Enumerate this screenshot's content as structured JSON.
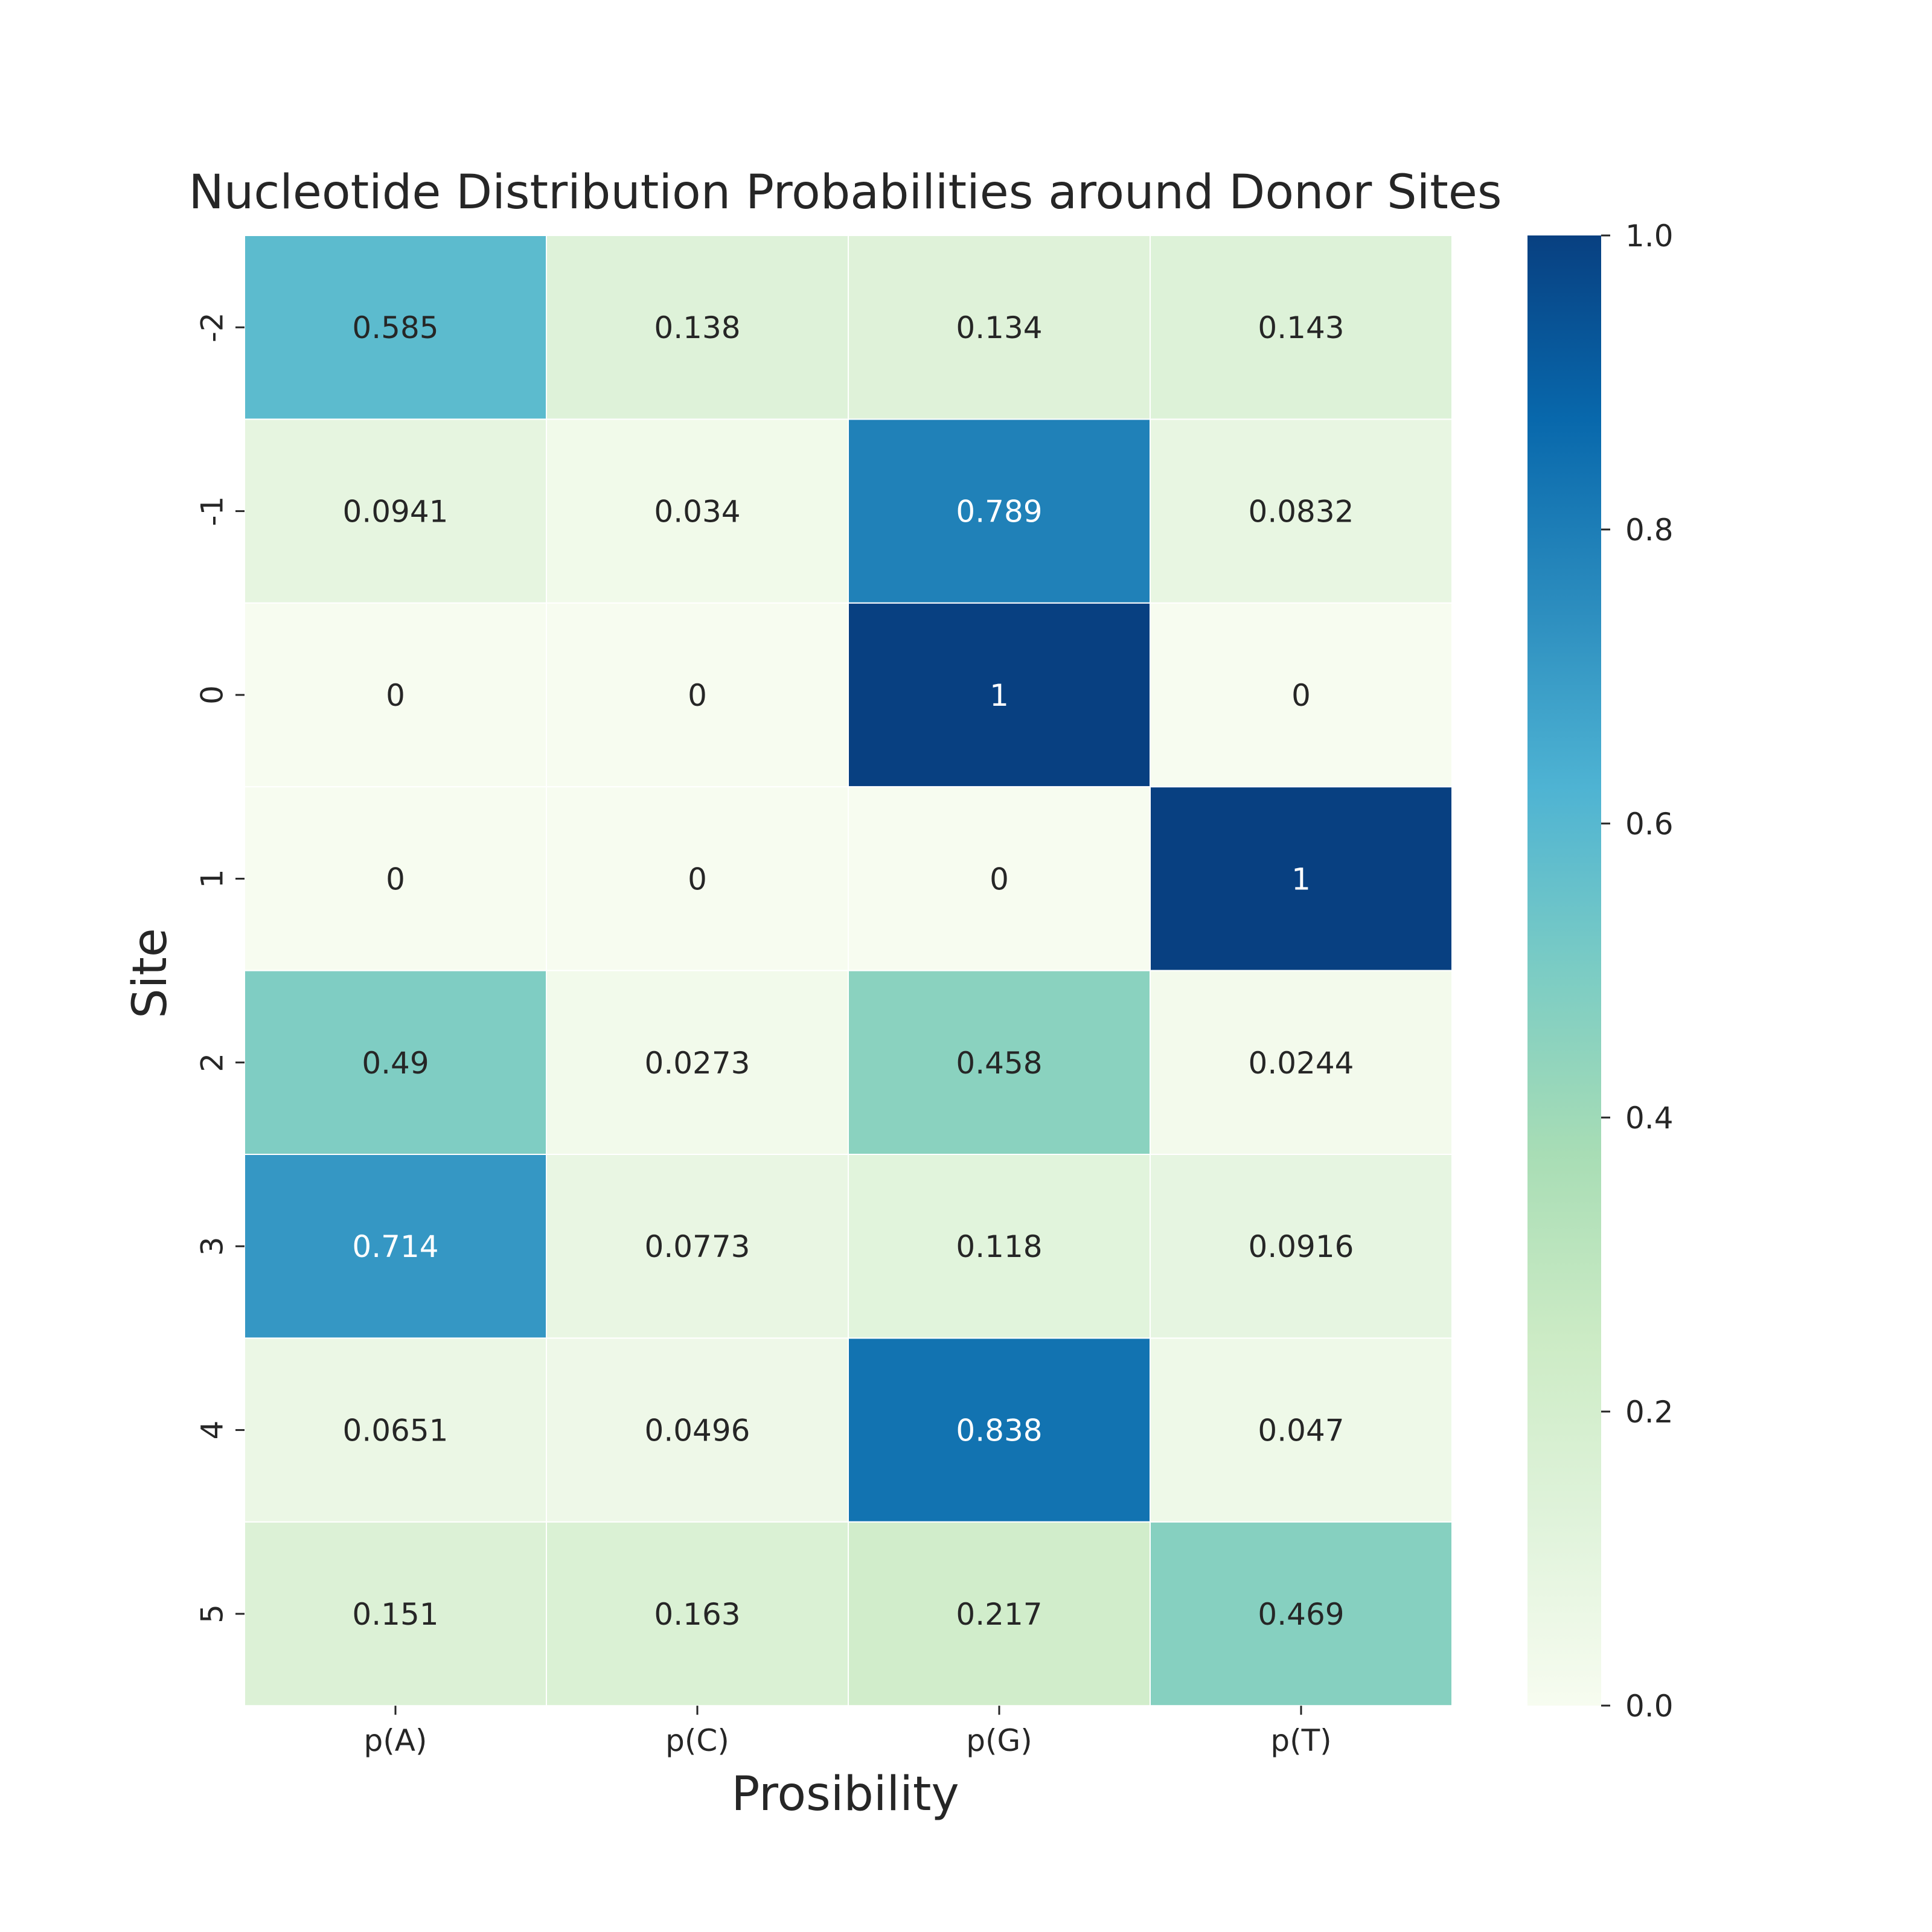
{
  "chart_data": {
    "type": "heatmap",
    "title": "Nucleotide Distribution Probabilities around Donor Sites",
    "xlabel": "Prosibility",
    "ylabel": "Site",
    "columns": [
      "p(A)",
      "p(C)",
      "p(G)",
      "p(T)"
    ],
    "rows": [
      "-2",
      "-1",
      "0",
      "1",
      "2",
      "3",
      "4",
      "5"
    ],
    "values": [
      [
        0.585,
        0.138,
        0.134,
        0.143
      ],
      [
        0.0941,
        0.034,
        0.789,
        0.0832
      ],
      [
        0,
        0,
        1,
        0
      ],
      [
        0,
        0,
        0,
        1
      ],
      [
        0.49,
        0.0273,
        0.458,
        0.0244
      ],
      [
        0.714,
        0.0773,
        0.118,
        0.0916
      ],
      [
        0.0651,
        0.0496,
        0.838,
        0.047
      ],
      [
        0.151,
        0.163,
        0.217,
        0.469
      ]
    ],
    "cell_labels": [
      [
        "0.585",
        "0.138",
        "0.134",
        "0.143"
      ],
      [
        "0.0941",
        "0.034",
        "0.789",
        "0.0832"
      ],
      [
        "0",
        "0",
        "1",
        "0"
      ],
      [
        "0",
        "0",
        "0",
        "1"
      ],
      [
        "0.49",
        "0.0273",
        "0.458",
        "0.0244"
      ],
      [
        "0.714",
        "0.0773",
        "0.118",
        "0.0916"
      ],
      [
        "0.0651",
        "0.0496",
        "0.838",
        "0.047"
      ],
      [
        "0.151",
        "0.163",
        "0.217",
        "0.469"
      ]
    ],
    "colorbar": {
      "range": [
        0,
        1
      ],
      "ticks": [
        "0.0",
        "0.2",
        "0.4",
        "0.6",
        "0.8",
        "1.0"
      ],
      "colormap": "GnBu",
      "stops": [
        "#f7fcf0",
        "#e0f3db",
        "#ccebc5",
        "#a8ddb5",
        "#7bccc4",
        "#4eb3d3",
        "#2b8cbe",
        "#0868ac",
        "#084081"
      ]
    },
    "grid": false,
    "legend": "colorbar-right"
  }
}
